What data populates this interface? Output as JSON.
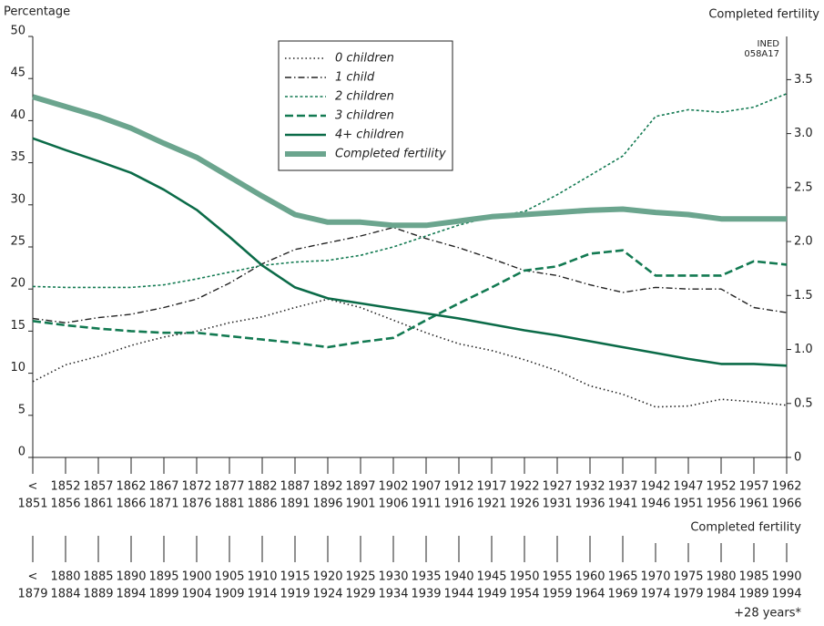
{
  "chart_data": {
    "type": "line",
    "y_label": "Percentage",
    "y2_label": "Completed fertility",
    "annotation": [
      "INED",
      "058A17"
    ],
    "categories": [
      "<",
      "1852",
      "1857",
      "1862",
      "1867",
      "1872",
      "1877",
      "1882",
      "1887",
      "1892",
      "1897",
      "1902",
      "1907",
      "1912",
      "1917",
      "1922",
      "1927",
      "1932",
      "1937",
      "1942",
      "1947",
      "1952",
      "1957",
      "1962"
    ],
    "categories_end": [
      "1851",
      "1856",
      "1861",
      "1866",
      "1871",
      "1876",
      "1881",
      "1886",
      "1891",
      "1896",
      "1901",
      "1906",
      "1911",
      "1916",
      "1921",
      "1926",
      "1931",
      "1936",
      "1941",
      "1946",
      "1951",
      "1956",
      "1961",
      "1966"
    ],
    "categories2_title": "Completed fertility",
    "categories2": [
      "<",
      "1880",
      "1885",
      "1890",
      "1895",
      "1900",
      "1905",
      "1910",
      "1915",
      "1920",
      "1925",
      "1930",
      "1935",
      "1940",
      "1945",
      "1950",
      "1955",
      "1960",
      "1965",
      "1970",
      "1975",
      "1980",
      "1985",
      "1990"
    ],
    "categories2_end": [
      "1879",
      "1884",
      "1889",
      "1894",
      "1899",
      "1904",
      "1909",
      "1914",
      "1919",
      "1924",
      "1929",
      "1934",
      "1939",
      "1944",
      "1949",
      "1954",
      "1959",
      "1964",
      "1969",
      "1974",
      "1979",
      "1984",
      "1989",
      "1994"
    ],
    "categories2_note": "+28 years*",
    "ylim": [
      0,
      50
    ],
    "yticks": [
      0,
      5,
      10,
      15,
      20,
      25,
      30,
      35,
      40,
      45,
      50
    ],
    "y2lim": [
      0,
      3.9
    ],
    "y2ticks": [
      0,
      0.5,
      {
        "value": 1,
        "label": "1.0"
      },
      1.5,
      {
        "value": 2,
        "label": "2.0"
      },
      2.5,
      {
        "value": 3,
        "label": "3.0"
      },
      3.5
    ],
    "series": [
      {
        "name": "0 children",
        "color": "#222222",
        "dash": "1.5 3",
        "width": 1.6,
        "values": [
          9,
          11,
          12,
          13.3,
          14.3,
          15,
          16,
          16.7,
          17.8,
          18.8,
          17.8,
          16.3,
          14.8,
          13.5,
          12.7,
          11.6,
          10.3,
          8.5,
          7.5,
          6,
          6.1,
          6.9,
          6.6,
          6.2
        ]
      },
      {
        "name": "1 child",
        "color": "#222222",
        "dash": "7 3 1.5 3",
        "width": 1.4,
        "values": [
          16.5,
          16,
          16.6,
          17,
          17.8,
          18.8,
          20.7,
          23,
          24.7,
          25.5,
          26.3,
          27.3,
          26,
          24.9,
          23.6,
          22.2,
          21.6,
          20.5,
          19.6,
          20.2,
          20,
          20,
          17.8,
          17.2
        ]
      },
      {
        "name": "2 children",
        "color": "#137a52",
        "dash": "3 2.5",
        "width": 1.6,
        "values": [
          20.3,
          20.2,
          20.2,
          20.2,
          20.5,
          21.2,
          22,
          22.8,
          23.2,
          23.4,
          24,
          25,
          26.3,
          27.6,
          28.6,
          29.2,
          31.2,
          33.5,
          35.8,
          40.5,
          41.3,
          41,
          41.6,
          43.2
        ]
      },
      {
        "name": "3 children",
        "color": "#137a52",
        "dash": "9 4",
        "width": 2.6,
        "values": [
          16.2,
          15.7,
          15.3,
          15,
          14.8,
          14.8,
          14.4,
          14,
          13.6,
          13.1,
          13.7,
          14.2,
          16.3,
          18.3,
          20.2,
          22.2,
          22.7,
          24.2,
          24.6,
          21.6,
          21.6,
          21.6,
          23.3,
          22.9
        ]
      },
      {
        "name": "4+ children",
        "color": "#0b6b48",
        "dash": "none",
        "width": 2.6,
        "values": [
          37.9,
          36.5,
          35.2,
          33.8,
          31.8,
          29.4,
          26.2,
          22.8,
          20.2,
          18.9,
          18.3,
          17.7,
          17.1,
          16.5,
          15.8,
          15.1,
          14.5,
          13.8,
          13.1,
          12.4,
          11.7,
          11.1,
          11.1,
          10.9
        ]
      },
      {
        "name": "Completed fertility",
        "color": "#6ba58e",
        "dash": "none",
        "width": 6,
        "axis": "y2",
        "values": [
          3.34,
          3.25,
          3.16,
          3.05,
          2.91,
          2.78,
          2.6,
          2.42,
          2.25,
          2.18,
          2.18,
          2.15,
          2.15,
          2.19,
          2.23,
          2.25,
          2.27,
          2.29,
          2.3,
          2.27,
          2.25,
          2.21,
          2.21,
          2.21
        ]
      }
    ]
  }
}
